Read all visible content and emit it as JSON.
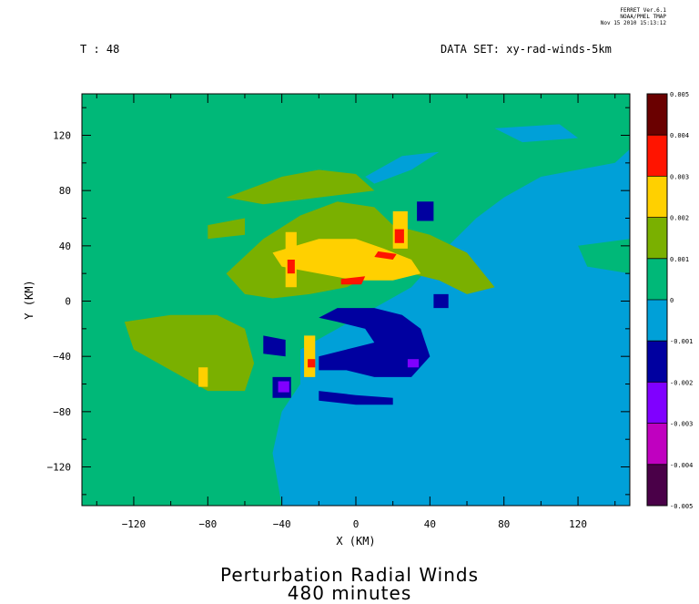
{
  "ferret_stamp": {
    "line1": "FERRET Ver.6.1",
    "line2": "NOAA/PMEL TMAP",
    "line3": "Nov 15 2010 15:13:12"
  },
  "header": {
    "time_label": "T : 48",
    "dataset_label": "DATA SET: xy-rad-winds-5km"
  },
  "title": {
    "line1": "Perturbation Radial Winds",
    "line2": "480 minutes"
  },
  "chart_data": {
    "type": "heatmap",
    "title": "Perturbation Radial Winds",
    "subtitle": "480 minutes",
    "xlabel": "X (KM)",
    "ylabel": "Y (KM)",
    "xlim": [
      -148,
      148
    ],
    "ylim": [
      -148,
      150
    ],
    "x_ticks": [
      -120,
      -80,
      -40,
      0,
      40,
      80,
      120
    ],
    "y_ticks": [
      -120,
      -80,
      -40,
      0,
      40,
      80,
      120
    ],
    "x_tick_labels": [
      "−120",
      "−80",
      "−40",
      "0",
      "40",
      "80",
      "120"
    ],
    "y_tick_labels": [
      "−120",
      "−80",
      "−40",
      "0",
      "40",
      "80",
      "120"
    ],
    "colorbar": {
      "levels": [
        "-0.005",
        "-0.004",
        "-0.003",
        "-0.002",
        "-0.001",
        "0",
        "0.001",
        "0.002",
        "0.003",
        "0.004",
        "0.005"
      ],
      "colors": [
        "#4a0048",
        "#c000c0",
        "#8000ff",
        "#0000a0",
        "#00a0d8",
        "#00b878",
        "#7ab000",
        "#ffd000",
        "#ff1400",
        "#6a0000"
      ]
    },
    "background_value_color": "#00b878",
    "regions": [
      {
        "level": "-0.001",
        "color": "#00a0d8",
        "points": [
          [
            -30,
            -35
          ],
          [
            -10,
            -20
          ],
          [
            10,
            -5
          ],
          [
            30,
            10
          ],
          [
            50,
            40
          ],
          [
            65,
            60
          ],
          [
            80,
            75
          ],
          [
            100,
            90
          ],
          [
            120,
            95
          ],
          [
            140,
            100
          ],
          [
            148,
            110
          ],
          [
            148,
            -148
          ],
          [
            -40,
            -148
          ],
          [
            -45,
            -110
          ],
          [
            -40,
            -80
          ],
          [
            -30,
            -60
          ]
        ]
      },
      {
        "level": "-0.001",
        "color": "#00a0d8",
        "points": [
          [
            5,
            90
          ],
          [
            25,
            105
          ],
          [
            45,
            108
          ],
          [
            30,
            95
          ],
          [
            10,
            85
          ]
        ]
      },
      {
        "level": "-0.001",
        "color": "#00a0d8",
        "points": [
          [
            75,
            125
          ],
          [
            110,
            128
          ],
          [
            120,
            118
          ],
          [
            90,
            115
          ]
        ]
      },
      {
        "level": "0",
        "color": "#00b878",
        "points": [
          [
            120,
            40
          ],
          [
            148,
            45
          ],
          [
            148,
            20
          ],
          [
            125,
            25
          ]
        ]
      },
      {
        "level": "0.001",
        "color": "#7ab000",
        "points": [
          [
            -125,
            -15
          ],
          [
            -100,
            -10
          ],
          [
            -75,
            -10
          ],
          [
            -60,
            -20
          ],
          [
            -55,
            -45
          ],
          [
            -60,
            -65
          ],
          [
            -80,
            -65
          ],
          [
            -100,
            -50
          ],
          [
            -120,
            -35
          ]
        ]
      },
      {
        "level": "0.001",
        "color": "#7ab000",
        "points": [
          [
            -70,
            20
          ],
          [
            -50,
            45
          ],
          [
            -30,
            62
          ],
          [
            -10,
            72
          ],
          [
            10,
            68
          ],
          [
            20,
            55
          ],
          [
            40,
            48
          ],
          [
            60,
            35
          ],
          [
            75,
            10
          ],
          [
            60,
            5
          ],
          [
            45,
            15
          ],
          [
            30,
            20
          ],
          [
            10,
            20
          ],
          [
            -5,
            10
          ],
          [
            -25,
            5
          ],
          [
            -45,
            2
          ],
          [
            -60,
            5
          ]
        ]
      },
      {
        "level": "0.001",
        "color": "#7ab000",
        "points": [
          [
            -80,
            55
          ],
          [
            -60,
            60
          ],
          [
            -60,
            48
          ],
          [
            -80,
            45
          ]
        ]
      },
      {
        "level": "0.001",
        "color": "#7ab000",
        "points": [
          [
            -70,
            75
          ],
          [
            -40,
            90
          ],
          [
            -20,
            95
          ],
          [
            0,
            92
          ],
          [
            10,
            80
          ],
          [
            -20,
            75
          ],
          [
            -50,
            70
          ]
        ]
      },
      {
        "level": "0.002",
        "color": "#ffd000",
        "points": [
          [
            -45,
            35
          ],
          [
            -20,
            45
          ],
          [
            0,
            45
          ],
          [
            15,
            38
          ],
          [
            30,
            30
          ],
          [
            35,
            20
          ],
          [
            20,
            15
          ],
          [
            0,
            15
          ],
          [
            -20,
            20
          ],
          [
            -40,
            25
          ]
        ]
      },
      {
        "level": "0.002",
        "color": "#ffd000",
        "points": [
          [
            -38,
            50
          ],
          [
            -32,
            50
          ],
          [
            -32,
            10
          ],
          [
            -38,
            10
          ]
        ]
      },
      {
        "level": "0.002",
        "color": "#ffd000",
        "points": [
          [
            20,
            65
          ],
          [
            28,
            65
          ],
          [
            28,
            38
          ],
          [
            20,
            38
          ]
        ]
      },
      {
        "level": "0.002",
        "color": "#ffd000",
        "points": [
          [
            -28,
            -25
          ],
          [
            -22,
            -25
          ],
          [
            -22,
            -55
          ],
          [
            -28,
            -55
          ]
        ]
      },
      {
        "level": "0.002",
        "color": "#ffd000",
        "points": [
          [
            -85,
            -48
          ],
          [
            -80,
            -48
          ],
          [
            -80,
            -62
          ],
          [
            -85,
            -62
          ]
        ]
      },
      {
        "level": "0.003",
        "color": "#ff1400",
        "points": [
          [
            -37,
            30
          ],
          [
            -33,
            30
          ],
          [
            -33,
            20
          ],
          [
            -37,
            20
          ]
        ]
      },
      {
        "level": "0.003",
        "color": "#ff1400",
        "points": [
          [
            21,
            52
          ],
          [
            26,
            52
          ],
          [
            26,
            42
          ],
          [
            21,
            42
          ]
        ]
      },
      {
        "level": "0.003",
        "color": "#ff1400",
        "points": [
          [
            12,
            36
          ],
          [
            22,
            34
          ],
          [
            20,
            30
          ],
          [
            10,
            32
          ]
        ]
      },
      {
        "level": "0.003",
        "color": "#ff1400",
        "points": [
          [
            -8,
            16
          ],
          [
            5,
            18
          ],
          [
            3,
            12
          ],
          [
            -8,
            12
          ]
        ]
      },
      {
        "level": "0.003",
        "color": "#ff1400",
        "points": [
          [
            -26,
            -42
          ],
          [
            -22,
            -42
          ],
          [
            -22,
            -48
          ],
          [
            -26,
            -48
          ]
        ]
      },
      {
        "level": "-0.002",
        "color": "#0000a0",
        "points": [
          [
            -10,
            -5
          ],
          [
            10,
            -5
          ],
          [
            25,
            -10
          ],
          [
            35,
            -20
          ],
          [
            40,
            -40
          ],
          [
            30,
            -55
          ],
          [
            10,
            -55
          ],
          [
            -5,
            -50
          ],
          [
            -20,
            -50
          ],
          [
            -20,
            -40
          ],
          [
            -5,
            -35
          ],
          [
            10,
            -30
          ],
          [
            5,
            -20
          ],
          [
            -10,
            -15
          ],
          [
            -20,
            -12
          ]
        ]
      },
      {
        "level": "-0.002",
        "color": "#0000a0",
        "points": [
          [
            -20,
            -65
          ],
          [
            0,
            -68
          ],
          [
            20,
            -70
          ],
          [
            20,
            -75
          ],
          [
            0,
            -75
          ],
          [
            -20,
            -72
          ]
        ]
      },
      {
        "level": "-0.002",
        "color": "#0000a0",
        "points": [
          [
            -50,
            -25
          ],
          [
            -38,
            -28
          ],
          [
            -38,
            -40
          ],
          [
            -50,
            -38
          ]
        ]
      },
      {
        "level": "-0.002",
        "color": "#0000a0",
        "points": [
          [
            -45,
            -55
          ],
          [
            -35,
            -55
          ],
          [
            -35,
            -70
          ],
          [
            -45,
            -70
          ]
        ]
      },
      {
        "level": "-0.002",
        "color": "#0000a0",
        "points": [
          [
            33,
            72
          ],
          [
            42,
            72
          ],
          [
            42,
            58
          ],
          [
            33,
            58
          ]
        ]
      },
      {
        "level": "-0.002",
        "color": "#0000a0",
        "points": [
          [
            42,
            5
          ],
          [
            50,
            5
          ],
          [
            50,
            -5
          ],
          [
            42,
            -5
          ]
        ]
      },
      {
        "level": "-0.003",
        "color": "#8000ff",
        "points": [
          [
            -42,
            -58
          ],
          [
            -36,
            -58
          ],
          [
            -36,
            -66
          ],
          [
            -42,
            -66
          ]
        ]
      },
      {
        "level": "-0.003",
        "color": "#8000ff",
        "points": [
          [
            28,
            -42
          ],
          [
            34,
            -42
          ],
          [
            34,
            -48
          ],
          [
            28,
            -48
          ]
        ]
      }
    ]
  }
}
